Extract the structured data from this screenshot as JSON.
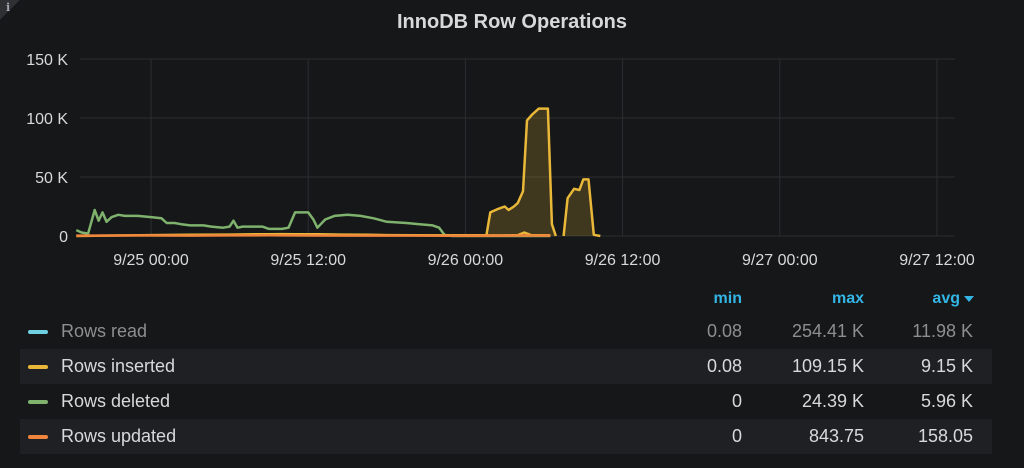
{
  "panel": {
    "title": "InnoDB Row Operations",
    "info_icon": "info-icon"
  },
  "chart_data": {
    "type": "line",
    "title": "InnoDB Row Operations",
    "xlabel": "",
    "ylabel": "",
    "y_ticks": [
      "0",
      "50 K",
      "100 K",
      "150 K"
    ],
    "x_ticks": [
      "9/25 00:00",
      "9/25 12:00",
      "9/26 00:00",
      "9/26 12:00",
      "9/27 00:00",
      "9/27 12:00"
    ],
    "x_unit": "hours since 9/25 00:00",
    "xlim": [
      -5.7,
      30.5
    ],
    "ylim": [
      0,
      150000
    ],
    "grid": true,
    "legend_position": "bottom",
    "series": [
      {
        "name": "Rows read",
        "color": "#6ed0e0",
        "fill": false,
        "points": []
      },
      {
        "name": "Rows inserted",
        "color": "#eab839",
        "fill": true,
        "points": [
          [
            -5.7,
            0
          ],
          [
            -2.0,
            500
          ],
          [
            0,
            800
          ],
          [
            3,
            1000
          ],
          [
            6,
            1200
          ],
          [
            8,
            1500
          ],
          [
            9,
            1500
          ],
          [
            10,
            1600
          ],
          [
            11,
            1500
          ],
          [
            12.8,
            1400
          ],
          [
            14.5,
            1200
          ],
          [
            16.5,
            1000
          ],
          [
            18,
            800
          ],
          [
            20,
            600
          ],
          [
            25.5,
            500
          ],
          [
            27,
            500
          ],
          [
            28,
            800
          ],
          [
            28.5,
            3000
          ],
          [
            29,
            800
          ],
          [
            30.5,
            500
          ]
        ]
      },
      {
        "name": "Rows deleted",
        "color": "#7eb26d",
        "fill": false,
        "points": [
          [
            -5.7,
            5000
          ],
          [
            -5.3,
            3000
          ],
          [
            -4.8,
            2000
          ],
          [
            -4.3,
            22000
          ],
          [
            -4.0,
            13000
          ],
          [
            -3.7,
            20000
          ],
          [
            -3.4,
            12000
          ],
          [
            -3.0,
            16000
          ],
          [
            -2.5,
            18000
          ],
          [
            -2.0,
            17000
          ],
          [
            -1.0,
            17000
          ],
          [
            0,
            16000
          ],
          [
            0.8,
            15000
          ],
          [
            1.2,
            11000
          ],
          [
            1.8,
            11000
          ],
          [
            2.3,
            10000
          ],
          [
            3.0,
            9000
          ],
          [
            4.0,
            9000
          ],
          [
            4.6,
            8000
          ],
          [
            5.5,
            7000
          ],
          [
            6.0,
            8000
          ],
          [
            6.3,
            13000
          ],
          [
            6.6,
            7000
          ],
          [
            7.0,
            8000
          ],
          [
            7.5,
            8000
          ],
          [
            8.5,
            8000
          ],
          [
            9.0,
            6000
          ],
          [
            10.0,
            6000
          ],
          [
            10.5,
            7000
          ],
          [
            11.0,
            20000
          ],
          [
            12.0,
            20000
          ],
          [
            12.4,
            14000
          ],
          [
            12.7,
            7000
          ],
          [
            13.3,
            14000
          ],
          [
            14.0,
            17000
          ],
          [
            15.0,
            18000
          ],
          [
            16.0,
            17000
          ],
          [
            17.0,
            15000
          ],
          [
            18.0,
            12000
          ],
          [
            19.5,
            11000
          ],
          [
            20.5,
            10000
          ],
          [
            21.5,
            9000
          ],
          [
            22.0,
            7000
          ],
          [
            22.4,
            1000
          ],
          [
            23.0,
            0
          ],
          [
            30.5,
            0
          ]
        ]
      },
      {
        "name": "Rows updated",
        "color": "#ef843c",
        "fill": false,
        "points": [
          [
            -5.7,
            300
          ],
          [
            -2.0,
            400
          ],
          [
            0,
            400
          ],
          [
            3,
            300
          ],
          [
            6,
            500
          ],
          [
            8,
            500
          ],
          [
            9,
            600
          ],
          [
            10,
            500
          ],
          [
            12,
            400
          ],
          [
            15,
            300
          ],
          [
            18,
            300
          ],
          [
            20,
            300
          ],
          [
            22.5,
            200
          ],
          [
            25,
            200
          ],
          [
            27,
            300
          ],
          [
            28,
            400
          ],
          [
            30.5,
            300
          ]
        ]
      }
    ],
    "inserted_spike_segments": [
      [
        [
          22.5,
          500
        ],
        [
          25.6,
          500
        ],
        [
          25.9,
          20000
        ],
        [
          26.5,
          23000
        ],
        [
          27.0,
          25000
        ],
        [
          27.3,
          22000
        ],
        [
          27.7,
          25000
        ],
        [
          28.0,
          28000
        ],
        [
          28.4,
          38000
        ],
        [
          28.7,
          98000
        ],
        [
          29.1,
          103000
        ],
        [
          29.6,
          108000
        ],
        [
          30.3,
          108000
        ],
        [
          30.6,
          10000
        ],
        [
          30.9,
          0
        ]
      ]
    ],
    "inserted_spike_segments_b": [
      [
        [
          31.5,
          0
        ],
        [
          31.8,
          32000
        ],
        [
          32.3,
          40000
        ],
        [
          32.7,
          39000
        ],
        [
          33.0,
          48000
        ],
        [
          33.4,
          48000
        ],
        [
          33.8,
          1000
        ],
        [
          34.3,
          0
        ]
      ]
    ]
  },
  "legend": {
    "headers": {
      "min": "min",
      "max": "max",
      "avg": "avg"
    },
    "rows": [
      {
        "name": "Rows read",
        "color": "#6ed0e0",
        "min": "0.08",
        "max": "254.41 K",
        "avg": "11.98 K",
        "dim": true
      },
      {
        "name": "Rows inserted",
        "color": "#eab839",
        "min": "0.08",
        "max": "109.15 K",
        "avg": "9.15 K",
        "dim": false
      },
      {
        "name": "Rows deleted",
        "color": "#7eb26d",
        "min": "0",
        "max": "24.39 K",
        "avg": "5.96 K",
        "dim": false
      },
      {
        "name": "Rows updated",
        "color": "#ef843c",
        "min": "0",
        "max": "843.75",
        "avg": "158.05",
        "dim": false
      }
    ]
  }
}
